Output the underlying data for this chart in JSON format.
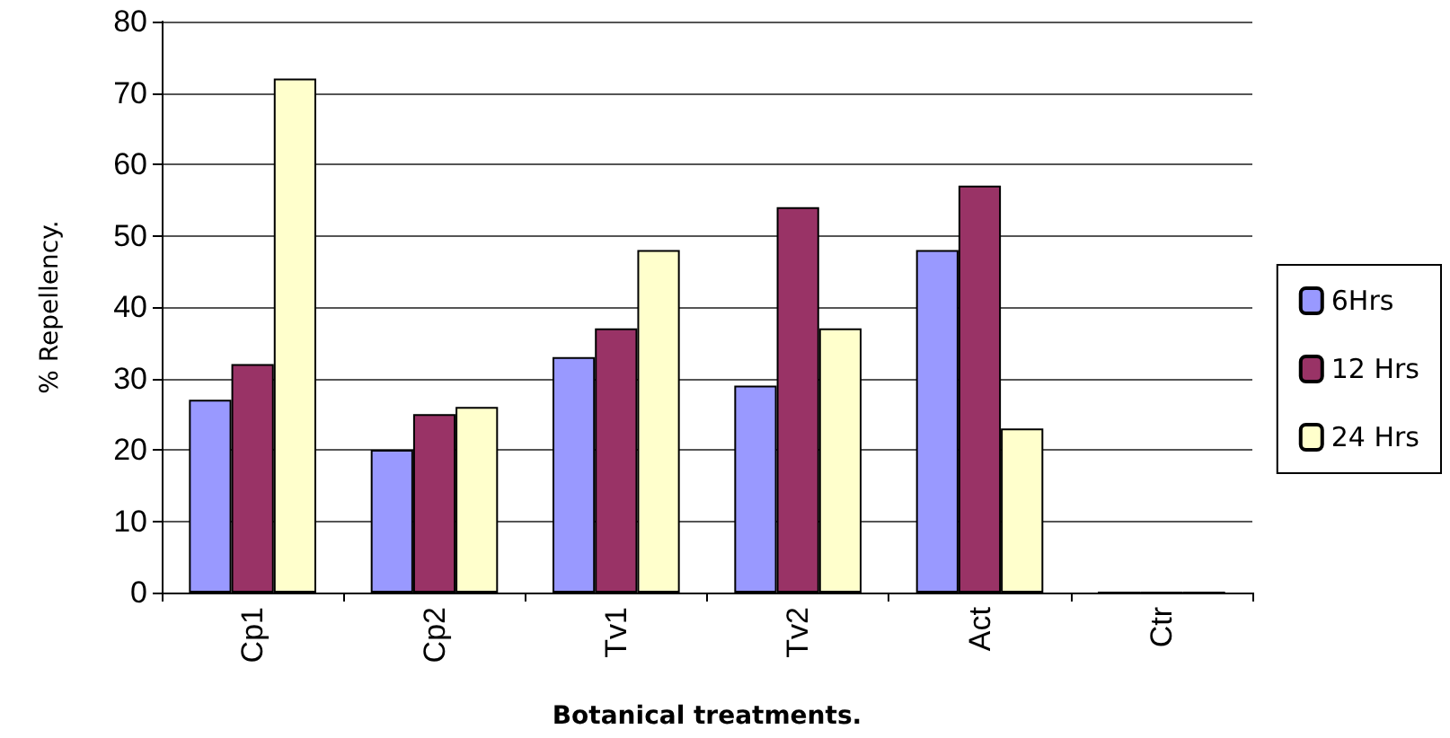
{
  "chart_data": {
    "type": "bar",
    "xlabel": "Botanical treatments.",
    "ylabel": "% Repellency.",
    "categories": [
      "Cp1",
      "Cp2",
      "Tv1",
      "Tv2",
      "Act",
      "Ctr"
    ],
    "series": [
      {
        "name": "6Hrs",
        "color": "#9999ff",
        "values": [
          27,
          20,
          33,
          29,
          48,
          0
        ]
      },
      {
        "name": "12 Hrs",
        "color": "#993366",
        "values": [
          32,
          25,
          37,
          54,
          57,
          0
        ]
      },
      {
        "name": "24 Hrs",
        "color": "#ffffcc",
        "values": [
          72,
          26,
          48,
          37,
          23,
          0
        ]
      }
    ],
    "ylim": [
      0,
      80
    ],
    "yticks": [
      0,
      10,
      20,
      30,
      40,
      50,
      60,
      70,
      80
    ],
    "grid": "y",
    "legend": "right"
  }
}
